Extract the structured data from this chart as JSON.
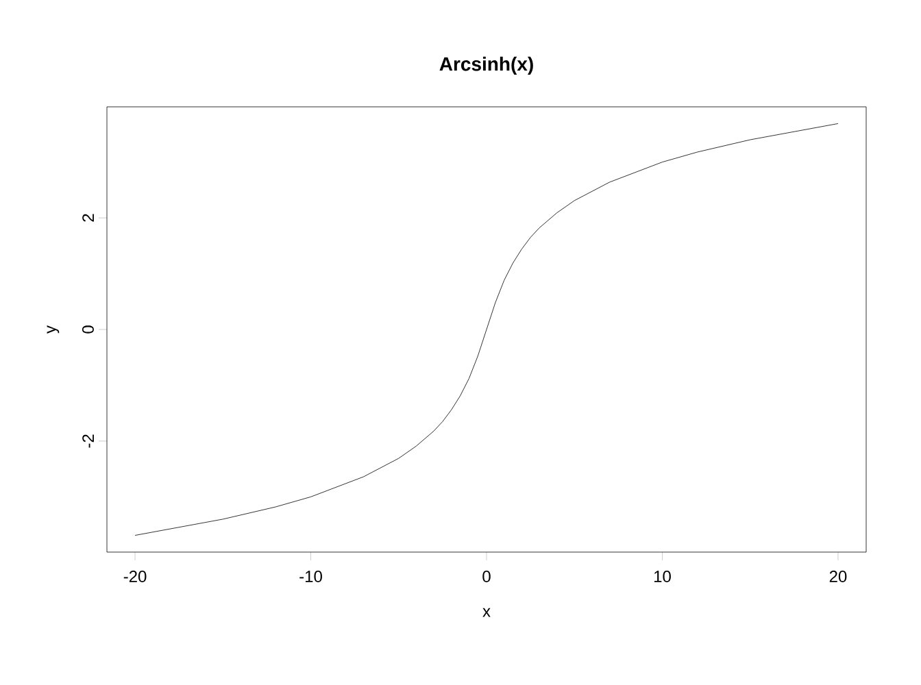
{
  "chart_data": {
    "type": "line",
    "title": "Arcsinh(x)",
    "xlabel": "x",
    "ylabel": "y",
    "x": [
      -20,
      -15,
      -12,
      -10,
      -7,
      -5,
      -4,
      -3,
      -2.5,
      -2,
      -1.5,
      -1,
      -0.5,
      0,
      0.5,
      1,
      1.5,
      2,
      2.5,
      3,
      4,
      5,
      7,
      10,
      12,
      15,
      20
    ],
    "values": [
      -3.69,
      -3.4,
      -3.18,
      -3.0,
      -2.64,
      -2.31,
      -2.09,
      -1.82,
      -1.65,
      -1.44,
      -1.19,
      -0.88,
      -0.48,
      0,
      0.48,
      0.88,
      1.19,
      1.44,
      1.65,
      1.82,
      2.09,
      2.31,
      2.64,
      3.0,
      3.18,
      3.4,
      3.69
    ],
    "color": "#000000",
    "xlim": [
      -21.6,
      21.6
    ],
    "ylim": [
      -3.99,
      3.99
    ],
    "xticks": [
      -20,
      -10,
      0,
      10,
      20
    ],
    "yticks": [
      -2,
      0,
      2
    ]
  }
}
